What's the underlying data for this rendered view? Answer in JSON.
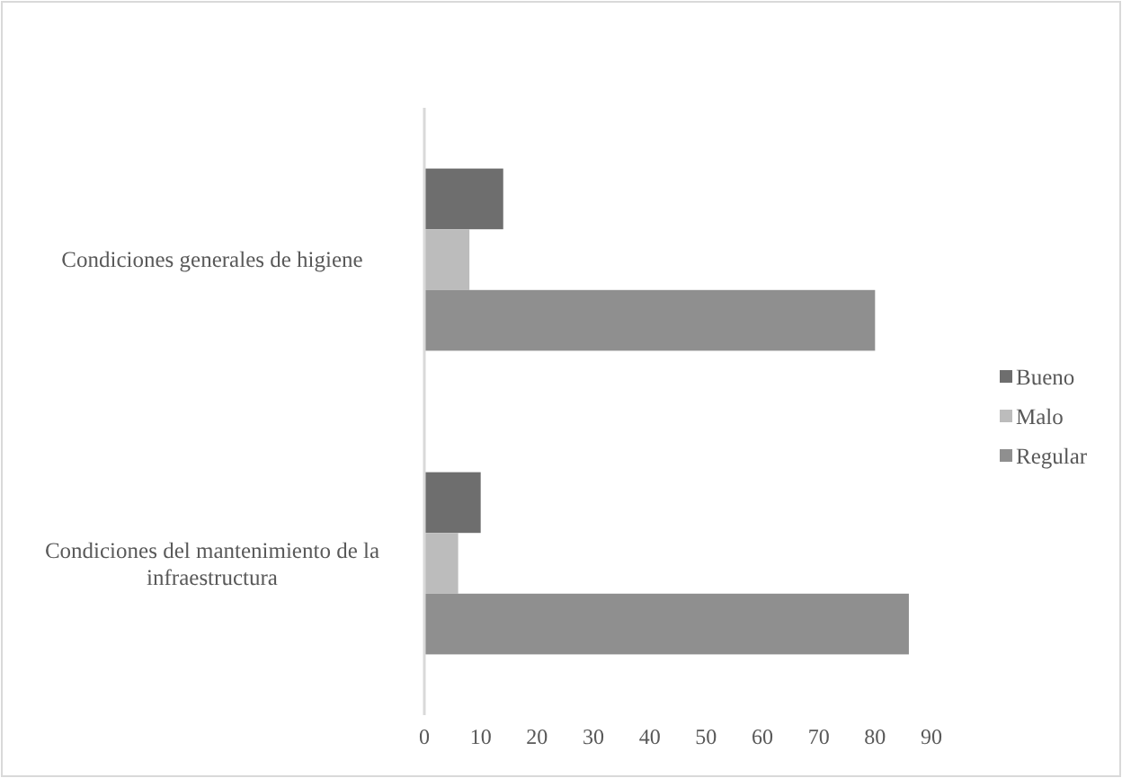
{
  "chart_data": {
    "type": "bar",
    "orientation": "horizontal",
    "categories": [
      "Condiciones generales de higiene",
      "Condiciones del mantenimiento de la infraestructura"
    ],
    "series": [
      {
        "name": "Bueno",
        "color": "#6e6e6e",
        "values": [
          14,
          10
        ]
      },
      {
        "name": "Malo",
        "color": "#bcbcbc",
        "values": [
          8,
          6
        ]
      },
      {
        "name": "Regular",
        "color": "#8f8f8f",
        "values": [
          80,
          86
        ]
      }
    ],
    "xlim": [
      0,
      90
    ],
    "xticks": [
      0,
      10,
      20,
      30,
      40,
      50,
      60,
      70,
      80,
      90
    ],
    "grid": false,
    "legend": "right"
  }
}
